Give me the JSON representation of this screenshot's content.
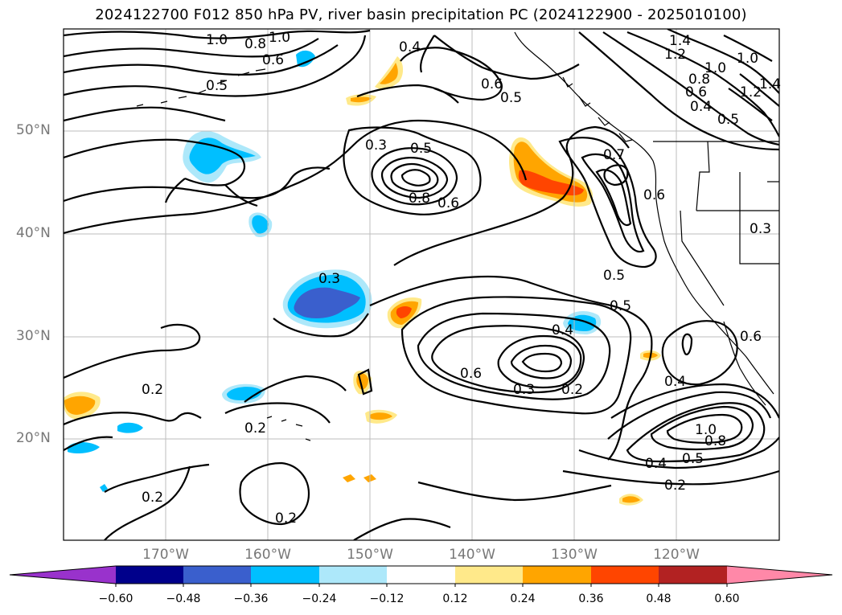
{
  "title": "2024122700 F012 850 hPa PV, river basin precipitation PC (2024122900 - 2025010100)",
  "lat_labels": [
    "50°N",
    "40°N",
    "30°N",
    "20°N"
  ],
  "lon_labels": [
    "170°W",
    "160°W",
    "150°W",
    "140°W",
    "130°W",
    "120°W"
  ],
  "contour_labels": [
    "1.0",
    "1.0",
    "0.8",
    "0.6",
    "0.5",
    "0.4",
    "0.6",
    "0.5",
    "1.4",
    "1.2",
    "1.0",
    "1.0",
    "0.8",
    "0.6",
    "0.4",
    "1.2",
    "1.4",
    "0.5",
    "0.3",
    "0.5",
    "0.8",
    "0.6",
    "0.7",
    "0.6",
    "0.3",
    "0.3",
    "0.5",
    "0.5",
    "0.4",
    "0.6",
    "0.3",
    "0.2",
    "0.2",
    "0.4",
    "1.0",
    "0.8",
    "0.5",
    "0.4",
    "0.2",
    "0.2",
    "0.2",
    "0.2",
    "0.6"
  ],
  "colorbar": {
    "ticks": [
      "−0.60",
      "−0.48",
      "−0.36",
      "−0.24",
      "−0.12",
      "0.12",
      "0.24",
      "0.36",
      "0.48",
      "0.60"
    ],
    "colors": [
      "#9932cc",
      "#00008b",
      "#3a5fcd",
      "#00bfff",
      "#ade8fa",
      "#ffffff",
      "#ffe98a",
      "#ffa500",
      "#ff4500",
      "#b22222",
      "#ff88a8",
      "#ff88a8"
    ],
    "neg_end_color": "#9932cc",
    "pos_end_color": "#ff88a8"
  },
  "fill_colors": {
    "neg_light": "#ade8fa",
    "neg_mid": "#00bfff",
    "neg_dark": "#3a5fcd",
    "pos_light": "#ffe98a",
    "pos_mid": "#ffa500",
    "pos_dark": "#ff4500"
  }
}
